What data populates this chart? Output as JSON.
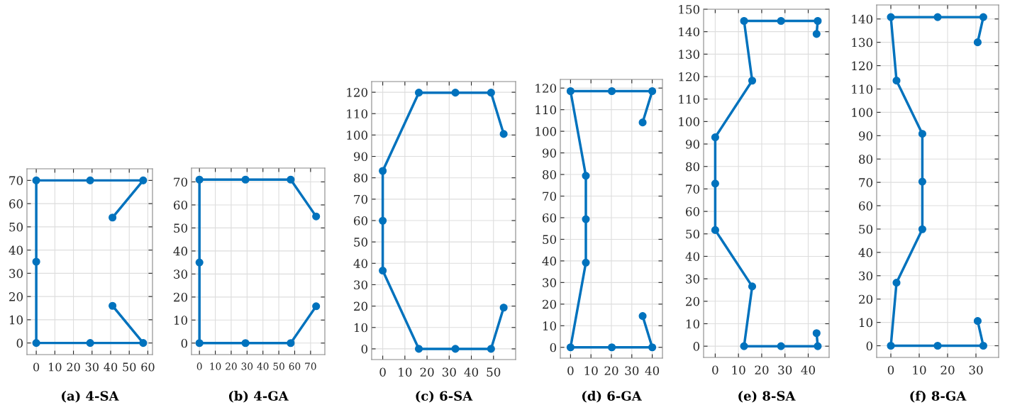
{
  "chart_data": [
    {
      "type": "line",
      "title": "(a) 4-SA",
      "marker": "circle",
      "line_style": "solid",
      "grid": true,
      "xlim": [
        -5,
        62.5
      ],
      "ylim": [
        -5,
        75
      ],
      "xticks": [
        0,
        10,
        20,
        30,
        40,
        50,
        60
      ],
      "yticks": [
        0,
        10,
        20,
        30,
        40,
        50,
        60,
        70
      ],
      "series": [
        {
          "color": "#0072bd",
          "x": [
            41,
            57.5,
            29,
            0,
            0,
            0,
            29,
            57.5,
            41
          ],
          "values": [
            16,
            0,
            0,
            0,
            35,
            70,
            70,
            70,
            54
          ]
        }
      ]
    },
    {
      "type": "line",
      "title": "(b) 4-GA",
      "marker": "circle",
      "line_style": "solid",
      "grid": true,
      "xlim": [
        -5,
        79
      ],
      "ylim": [
        -5,
        76
      ],
      "xticks": [
        0,
        10,
        20,
        30,
        40,
        50,
        60,
        70
      ],
      "yticks": [
        0,
        10,
        20,
        30,
        40,
        50,
        60,
        70
      ],
      "series": [
        {
          "color": "#0072bd",
          "x": [
            73.5,
            57.5,
            29,
            0,
            0,
            0,
            29,
            57.5,
            73.5
          ],
          "values": [
            16,
            0,
            0,
            0,
            35,
            71,
            71,
            71,
            55
          ]
        }
      ]
    },
    {
      "type": "line",
      "title": "(c) 6-SA",
      "marker": "circle",
      "line_style": "solid",
      "grid": true,
      "xlim": [
        -5,
        60
      ],
      "ylim": [
        -5,
        125
      ],
      "xticks": [
        0,
        10,
        20,
        30,
        40,
        50
      ],
      "yticks": [
        0,
        10,
        20,
        30,
        40,
        50,
        60,
        70,
        80,
        90,
        100,
        110,
        120
      ],
      "series": [
        {
          "color": "#0072bd",
          "x": [
            54.6,
            48.9,
            32.8,
            16.3,
            0,
            0,
            0,
            16.3,
            32.8,
            48.9,
            54.6
          ],
          "values": [
            19.3,
            0,
            0,
            0,
            36.6,
            59.9,
            83.2,
            119.8,
            119.8,
            119.8,
            100.5
          ]
        }
      ]
    },
    {
      "type": "line",
      "title": "(d) 6-GA",
      "marker": "circle",
      "line_style": "solid",
      "grid": true,
      "xlim": [
        -5,
        45
      ],
      "ylim": [
        -5,
        124
      ],
      "xticks": [
        0,
        10,
        20,
        30,
        40
      ],
      "yticks": [
        0,
        10,
        20,
        30,
        40,
        50,
        60,
        70,
        80,
        90,
        100,
        110,
        120
      ],
      "series": [
        {
          "color": "#0072bd",
          "x": [
            35.3,
            40,
            20.2,
            0,
            7.5,
            7.5,
            7.5,
            0,
            20.2,
            40,
            35.3
          ],
          "values": [
            14.5,
            0,
            0,
            0,
            39.2,
            59.3,
            79.4,
            118.6,
            118.6,
            118.6,
            104.1
          ]
        }
      ]
    },
    {
      "type": "line",
      "title": "(e) 8-SA",
      "marker": "circle",
      "line_style": "solid",
      "grid": true,
      "xlim": [
        -5,
        49
      ],
      "ylim": [
        -5,
        150
      ],
      "xticks": [
        0,
        10,
        20,
        30,
        40
      ],
      "yticks": [
        0,
        10,
        20,
        30,
        40,
        50,
        60,
        70,
        80,
        90,
        100,
        110,
        120,
        130,
        140,
        150
      ],
      "series": [
        {
          "color": "#0072bd",
          "x": [
            43.6,
            44.1,
            28.3,
            12.4,
            15.9,
            0,
            0,
            0,
            15.9,
            12.4,
            28.3,
            44.1,
            43.6
          ],
          "values": [
            5.8,
            0,
            0,
            0,
            26.6,
            51.7,
            72.4,
            93,
            118.2,
            144.8,
            144.8,
            144.8,
            139
          ]
        }
      ]
    },
    {
      "type": "line",
      "title": "(f) 8-GA",
      "marker": "circle",
      "line_style": "solid",
      "grid": true,
      "xlim": [
        -5,
        38
      ],
      "ylim": [
        -5,
        146
      ],
      "xticks": [
        0,
        10,
        20,
        30
      ],
      "yticks": [
        0,
        10,
        20,
        30,
        40,
        50,
        60,
        70,
        80,
        90,
        100,
        110,
        120,
        130,
        140
      ],
      "series": [
        {
          "color": "#0072bd",
          "x": [
            30.6,
            32.6,
            16.5,
            0,
            2,
            11.1,
            11.1,
            11.1,
            2,
            0,
            16.5,
            32.6,
            30.6
          ],
          "values": [
            10.6,
            0,
            0,
            0,
            27,
            49.9,
            70.3,
            90.8,
            113.6,
            140.8,
            140.8,
            140.8,
            130
          ]
        }
      ]
    }
  ]
}
